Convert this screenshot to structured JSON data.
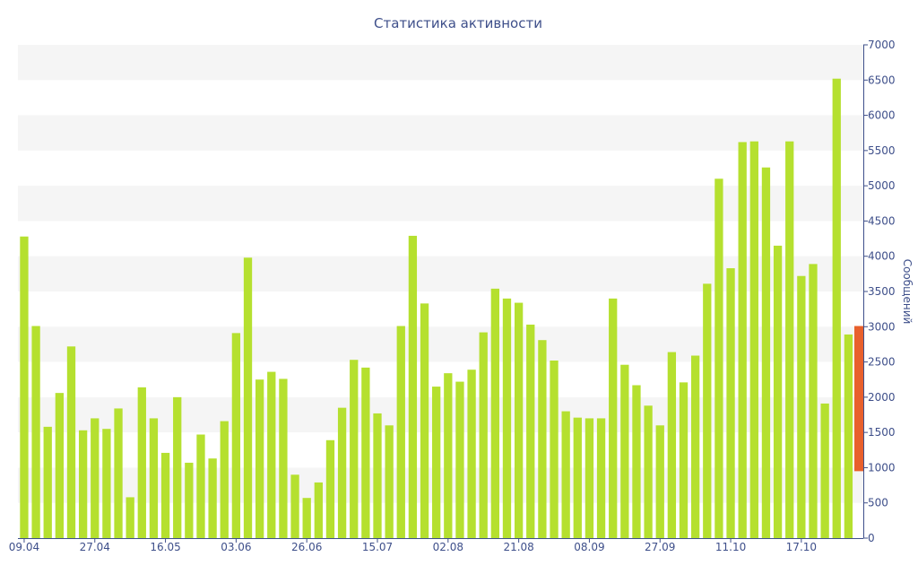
{
  "chart_data": {
    "type": "bar",
    "title": "Статистика активности",
    "ylabel": "Сообщений",
    "ylim": [
      0,
      7000
    ],
    "y_ticks": [
      0,
      500,
      1000,
      1500,
      2000,
      2500,
      3000,
      3500,
      4000,
      4500,
      5000,
      5500,
      6000,
      6500,
      7000
    ],
    "y_axis_side": "right",
    "x_tick_labels": [
      "09.04",
      "27.04",
      "16.05",
      "03.06",
      "26.06",
      "15.07",
      "02.08",
      "21.08",
      "08.09",
      "27.09",
      "11.10",
      "17.10"
    ],
    "x_tick_bar_index": [
      0,
      6,
      12,
      18,
      24,
      30,
      36,
      42,
      48,
      54,
      60,
      66
    ],
    "grid": "alternating horizontal bands",
    "colors": {
      "bar": "#b5e02f",
      "highlight": "#e8602c",
      "band": "#f5f5f5",
      "text": "#3e4f8a",
      "axis": "#3e4f8a"
    },
    "series": [
      {
        "values": [
          4280,
          3010,
          1580,
          2060,
          2720,
          1530,
          1700,
          1550,
          1840,
          580,
          2140,
          1700,
          1210,
          2000,
          1070,
          1470,
          1130,
          1660,
          2910,
          3980,
          2250,
          2360,
          2260,
          900,
          570,
          790,
          1390,
          1850,
          2530,
          2420,
          1770,
          1600,
          3010,
          4290,
          3330,
          2150,
          2340,
          2220,
          2390,
          2920,
          3540,
          3400,
          3340,
          3030,
          2810,
          2520,
          1800,
          1710,
          1700,
          1700,
          3400,
          2460,
          2170,
          1880,
          1600,
          2640,
          2210,
          2590,
          3610,
          5100,
          3830,
          5620,
          5630,
          5260,
          4150,
          5630,
          3720,
          3890,
          1910,
          6520,
          2890
        ]
      }
    ],
    "highlight": {
      "range": [
        950,
        3010
      ]
    }
  }
}
